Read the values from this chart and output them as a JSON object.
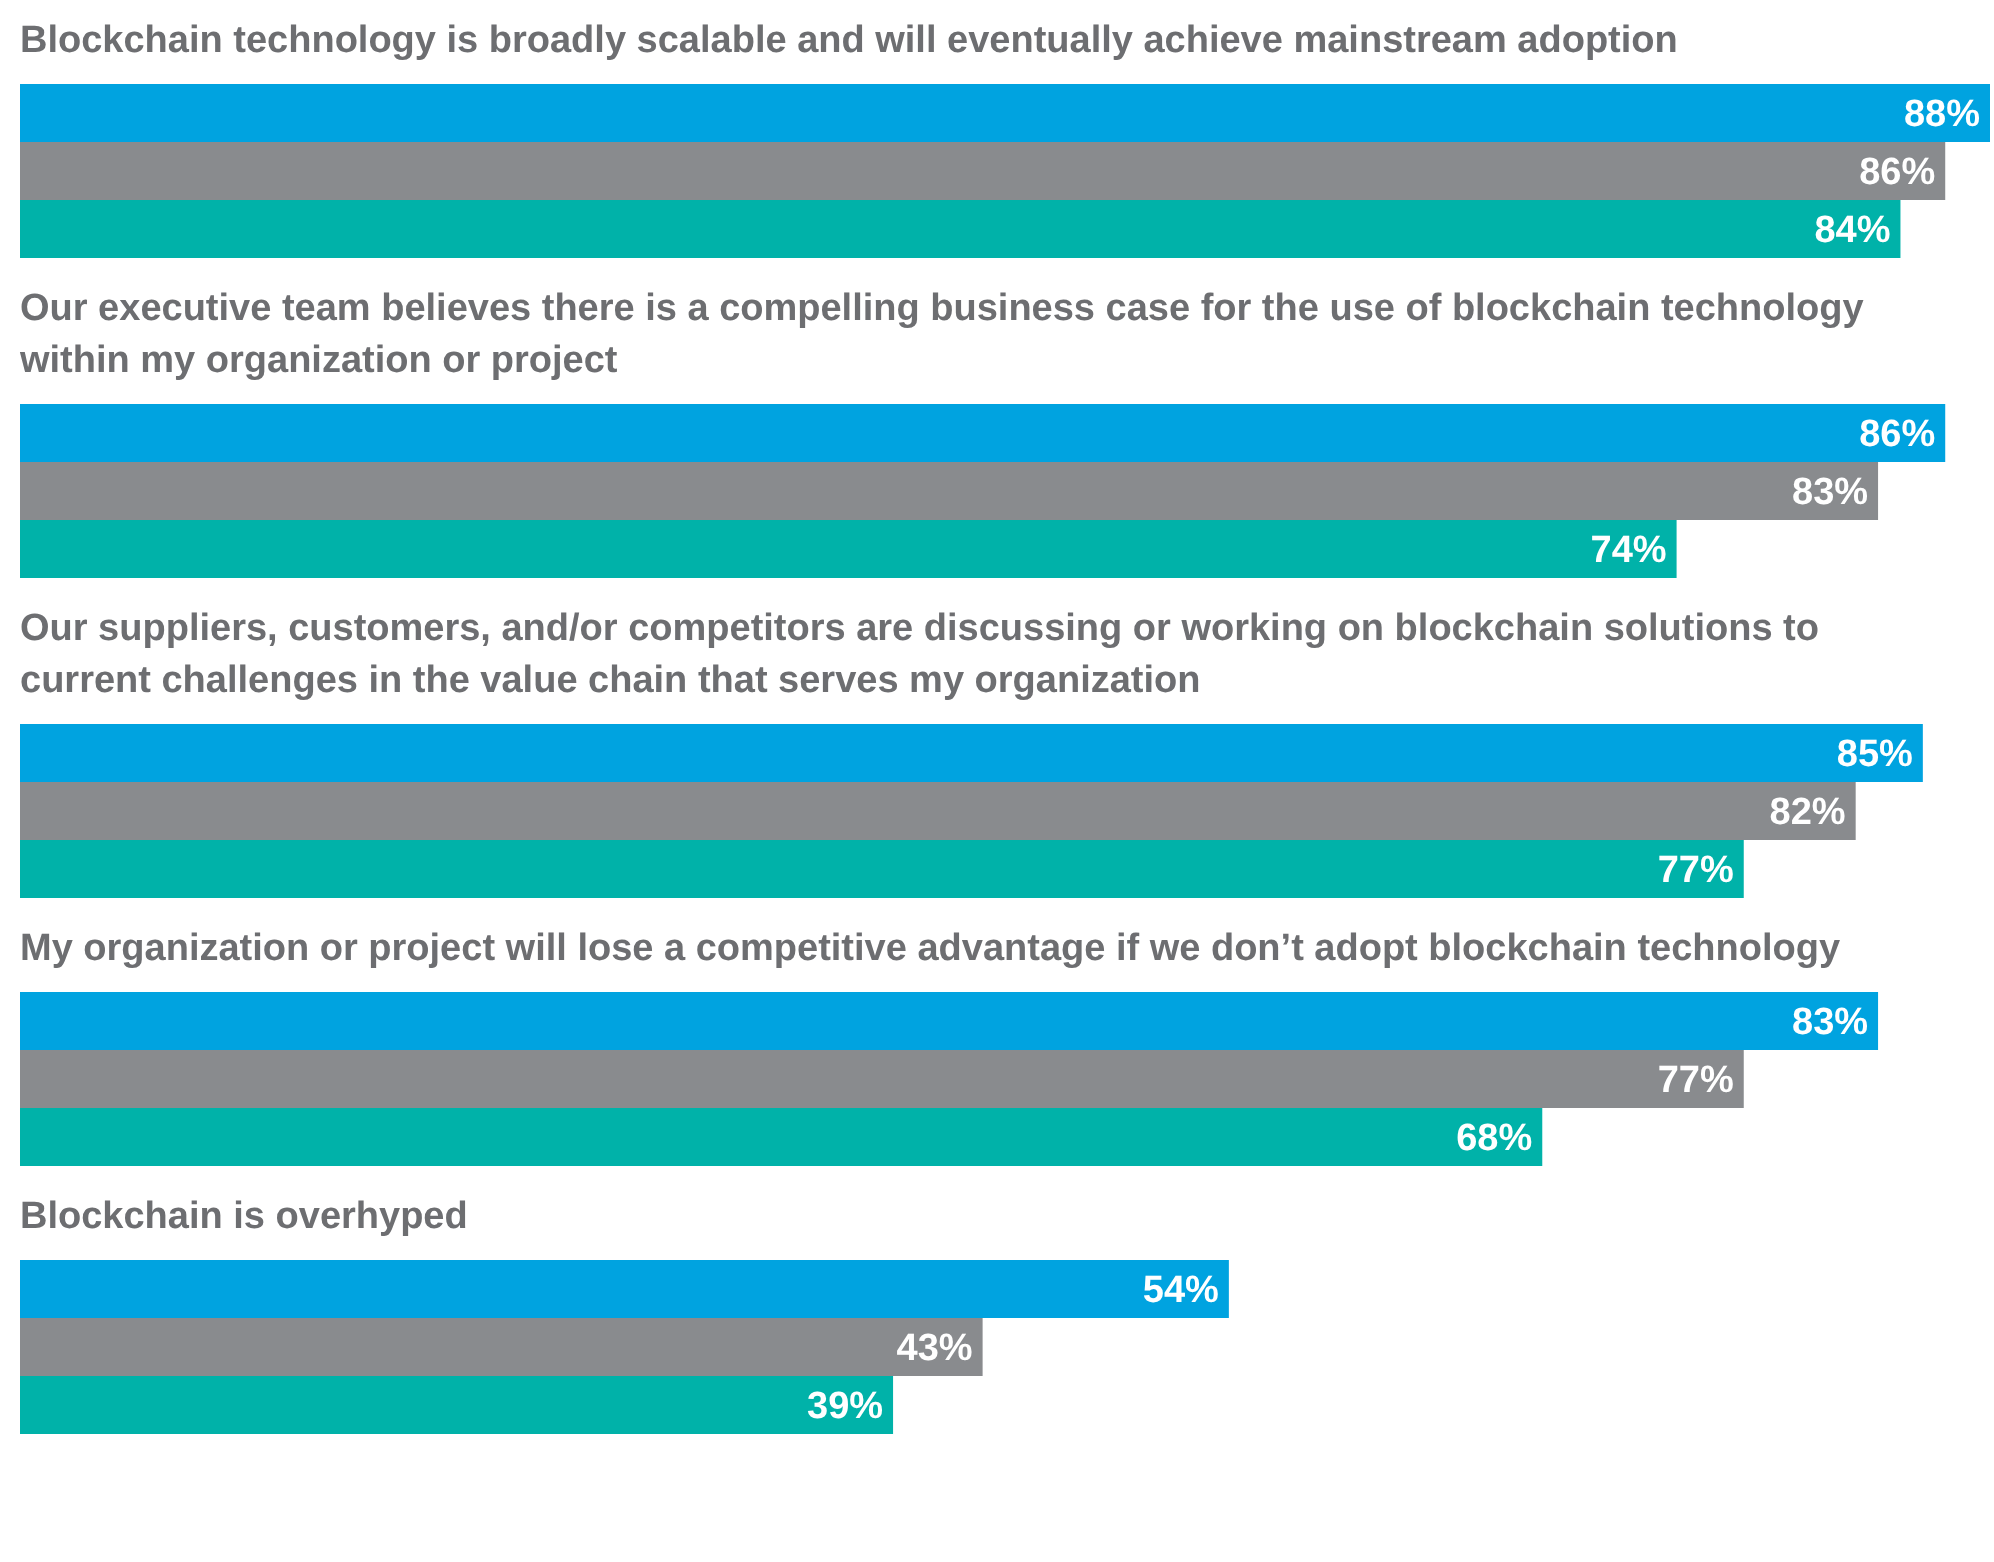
{
  "chart_data": {
    "type": "bar",
    "orientation": "horizontal",
    "categories": [
      "Blockchain technology is broadly scalable and will eventually achieve mainstream adoption",
      "Our executive team believes there is a compelling business case for the use of blockchain technology within my organization or project",
      "Our suppliers, customers, and/or competitors are discussing or working on blockchain solutions to current challenges in the value chain that serves my organization",
      "My organization or project will lose a competitive advantage if we don’t adopt blockchain technology",
      "Blockchain is overhyped"
    ],
    "series": [
      {
        "color": "#00a3e0",
        "values": [
          88,
          86,
          85,
          83,
          54
        ],
        "value_labels": [
          "88%",
          "86%",
          "85%",
          "83%",
          "54%"
        ]
      },
      {
        "color": "#898b8e",
        "values": [
          86,
          83,
          82,
          77,
          43
        ],
        "value_labels": [
          "86%",
          "83%",
          "82%",
          "77%",
          "43%"
        ]
      },
      {
        "color": "#00b2a9",
        "values": [
          84,
          74,
          77,
          68,
          39
        ],
        "value_labels": [
          "84%",
          "74%",
          "77%",
          "68%",
          "39%"
        ]
      }
    ]
  }
}
